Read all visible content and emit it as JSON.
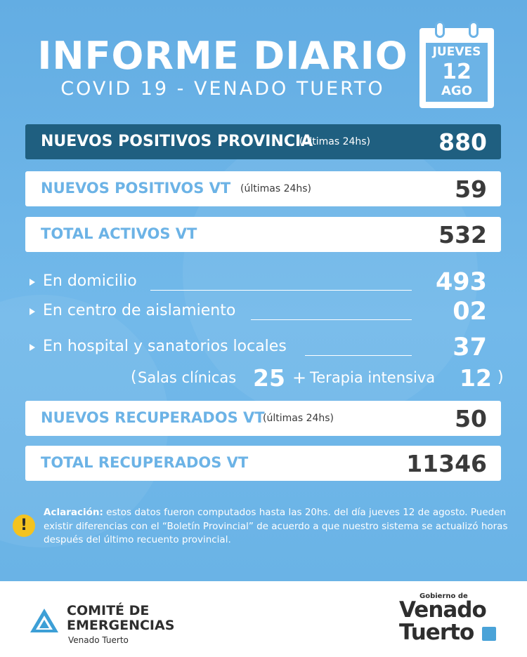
{
  "header": {
    "title": "INFORME DIARIO",
    "subtitle": "COVID 19 - VENADO TUERTO"
  },
  "calendar": {
    "day_name": "JUEVES",
    "day": "12",
    "month": "AGO"
  },
  "bars": {
    "provincia": {
      "label": "NUEVOS POSITIVOS PROVINCIA",
      "note": "(últimas 24hs)",
      "value": "880"
    },
    "positivos_vt": {
      "label": "NUEVOS POSITIVOS VT",
      "note": "(últimas 24hs)",
      "value": "59"
    },
    "activos_vt": {
      "label": "TOTAL ACTIVOS VT",
      "value": "532"
    },
    "recuperados_vt": {
      "label": "NUEVOS RECUPERADOS VT",
      "note": "(últimas 24hs)",
      "value": "50"
    },
    "total_recuperados": {
      "label": "TOTAL RECUPERADOS VT",
      "value": "11346"
    }
  },
  "items": {
    "domicilio": {
      "label": "En domicilio",
      "value": "493"
    },
    "aislamiento": {
      "label": "En centro de aislamiento",
      "value": "02"
    },
    "hospital": {
      "label": "En hospital y sanatorios locales",
      "value": "37"
    }
  },
  "breakdown": {
    "open": "(",
    "salas_label": "Salas clínicas",
    "salas_value": "25",
    "plus": "+",
    "terapia_label": "Terapia intensiva",
    "terapia_value": "12",
    "close": ")"
  },
  "note": {
    "bold": "Aclaración:",
    "text": " estos datos fueron computados hasta las 20hs. del día jueves 12 de agosto. Pueden existir diferencias con el “Boletín Provincial” de acuerdo a que nuestro sistema se actualizó horas después del último recuento provincial.",
    "icon": "!"
  },
  "footer": {
    "comite_title_1": "COMITÉ DE",
    "comite_title_2": "EMERGENCIAS",
    "comite_sub": "Venado Tuerto",
    "gobierno_small": "Gobierno de",
    "gobierno_line1": "Venado",
    "gobierno_line2": "Tuerto"
  },
  "colors": {
    "background": "#6cb3e6",
    "dark_bar": "#1f5f80",
    "label_blue": "#6cb3e6",
    "value_dark": "#3a3a3a",
    "warning": "#f4c320"
  }
}
